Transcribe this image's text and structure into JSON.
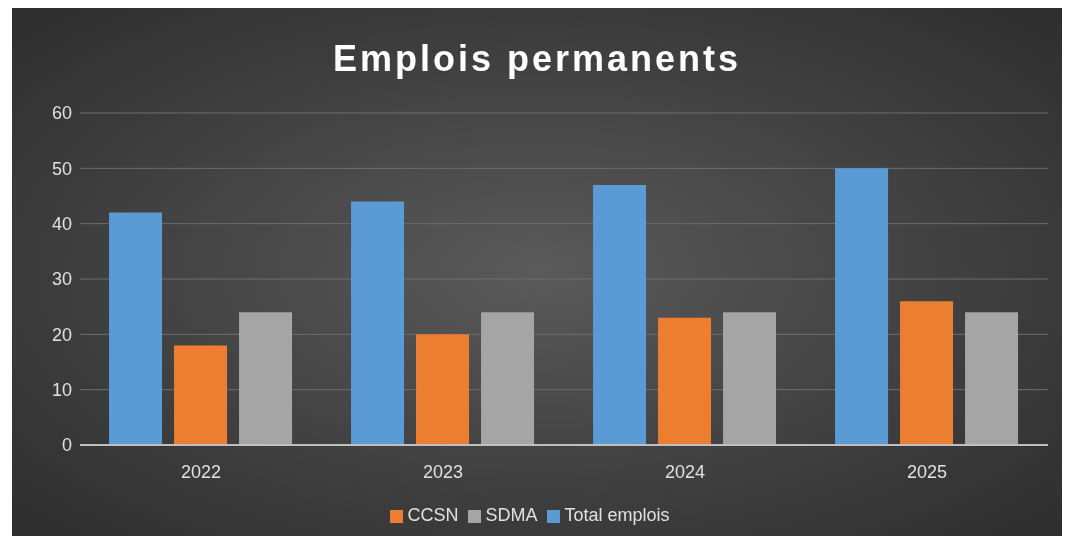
{
  "chart_data": {
    "type": "bar",
    "title": "Emplois permanents",
    "categories": [
      "2022",
      "2023",
      "2024",
      "2025"
    ],
    "series": [
      {
        "name": "Total emplois",
        "color": "#5b9bd5",
        "values": [
          42,
          44,
          47,
          50
        ]
      },
      {
        "name": "CCSN",
        "color": "#ed7d31",
        "values": [
          18,
          20,
          23,
          26
        ]
      },
      {
        "name": "SDMA",
        "color": "#a5a5a5",
        "values": [
          24,
          24,
          24,
          24
        ]
      }
    ],
    "ylim": [
      0,
      60
    ],
    "yticks": [
      0,
      10,
      20,
      30,
      40,
      50,
      60
    ],
    "grid": "y",
    "legend": "bottom"
  }
}
